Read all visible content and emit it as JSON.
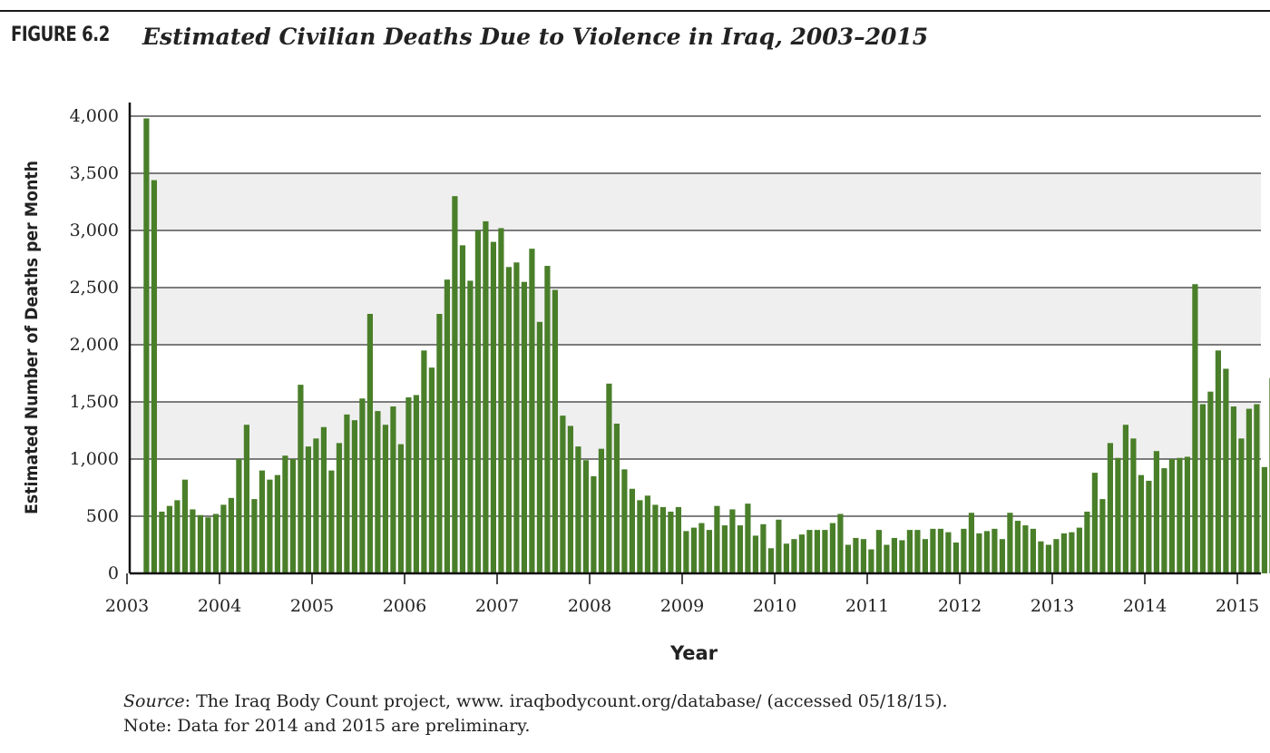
{
  "figure": {
    "label": "FIGURE 6.2",
    "title": "Estimated Civilian Deaths Due to Violence in Iraq, 2003–2015"
  },
  "source": {
    "source_label": "Source",
    "source_text": ": The Iraq Body Count project, www. iraqbodycount.org/database/ (accessed 05/18/15).",
    "note": "Note: Data for 2014 and 2015 are preliminary."
  },
  "colors": {
    "bar": "#4a7f2a",
    "band": "#efefef",
    "grid": "#333333"
  },
  "chart_data": {
    "type": "bar",
    "title": "Estimated Civilian Deaths Due to Violence in Iraq, 2003–2015",
    "xlabel": "Year",
    "ylabel": "Estimated Number of Deaths per Month",
    "ylim": [
      0,
      4000
    ],
    "yticks": [
      "0",
      "500",
      "1,000",
      "1,500",
      "2,000",
      "2,500",
      "3,000",
      "3,500",
      "4,000"
    ],
    "xticks": [
      "2003",
      "2004",
      "2005",
      "2006",
      "2007",
      "2008",
      "2009",
      "2010",
      "2011",
      "2012",
      "2013",
      "2014",
      "2015"
    ],
    "grid": true,
    "start": "2003-03",
    "end": "2015-05",
    "values": [
      3980,
      3440,
      540,
      590,
      640,
      820,
      560,
      510,
      490,
      520,
      600,
      660,
      1000,
      1300,
      650,
      900,
      820,
      860,
      1030,
      1000,
      1650,
      1110,
      1180,
      1280,
      900,
      1140,
      1390,
      1340,
      1530,
      2270,
      1420,
      1300,
      1460,
      1130,
      1540,
      1560,
      1950,
      1800,
      2270,
      2570,
      3300,
      2870,
      2560,
      3000,
      3080,
      2900,
      3020,
      2680,
      2720,
      2550,
      2840,
      2200,
      2690,
      2480,
      1380,
      1290,
      1110,
      990,
      850,
      1090,
      1660,
      1310,
      910,
      740,
      640,
      680,
      600,
      580,
      540,
      580,
      370,
      400,
      440,
      380,
      590,
      420,
      560,
      420,
      610,
      330,
      430,
      220,
      470,
      260,
      300,
      340,
      380,
      380,
      380,
      440,
      520,
      250,
      310,
      300,
      210,
      380,
      250,
      310,
      290,
      380,
      380,
      300,
      390,
      390,
      360,
      270,
      390,
      530,
      350,
      370,
      390,
      300,
      530,
      460,
      420,
      390,
      280,
      250,
      300,
      350,
      360,
      400,
      540,
      880,
      650,
      1140,
      1010,
      1300,
      1180,
      860,
      810,
      1070,
      920,
      1000,
      1010,
      1020,
      2530,
      1480,
      1590,
      1950,
      1790,
      1460,
      1180,
      1440,
      1480,
      930,
      1710
    ]
  }
}
